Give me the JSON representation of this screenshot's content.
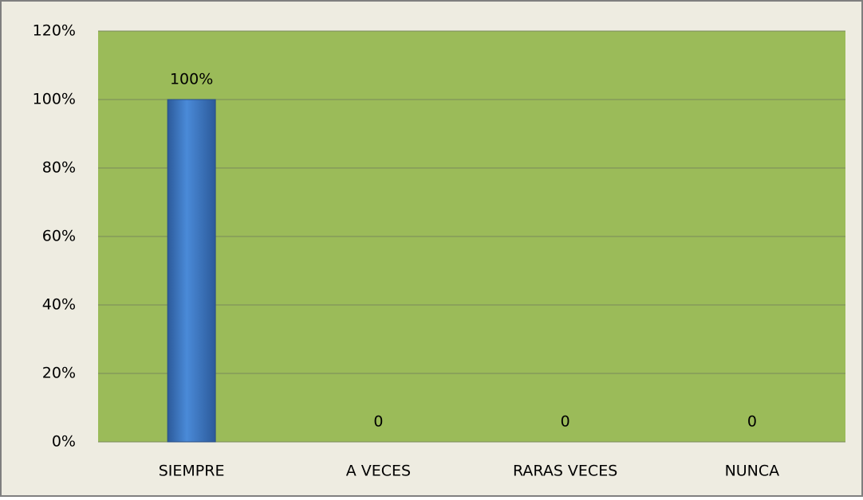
{
  "chart_data": {
    "type": "bar",
    "categories": [
      "SIEMPRE",
      "A VECES",
      "RARAS VECES",
      "NUNCA"
    ],
    "values": [
      100,
      0,
      0,
      0
    ],
    "value_labels": [
      "100%",
      "0",
      "0",
      "0"
    ],
    "color": "#3f79c4",
    "ylim": [
      0,
      120
    ],
    "yticks": [
      {
        "value": 0,
        "label": "0%"
      },
      {
        "value": 20,
        "label": "20%"
      },
      {
        "value": 40,
        "label": "40%"
      },
      {
        "value": 60,
        "label": "60%"
      },
      {
        "value": 80,
        "label": "80%"
      },
      {
        "value": 100,
        "label": "100%"
      },
      {
        "value": 120,
        "label": "120%"
      }
    ],
    "grid": true
  }
}
